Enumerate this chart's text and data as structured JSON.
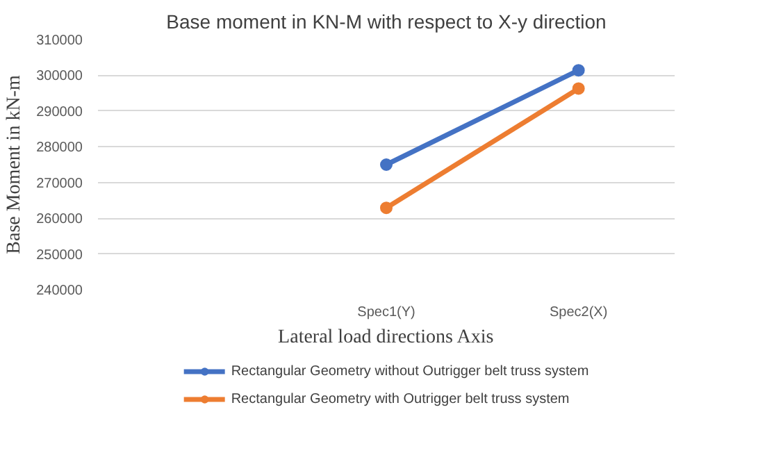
{
  "chart_data": {
    "type": "line",
    "title": "Base moment in KN-M with respect to X-y direction",
    "xlabel": "Lateral load directions Axis",
    "ylabel": "Base Moment in kN-m",
    "categories": [
      null,
      "Spec1(Y)",
      "Spec2(X)"
    ],
    "series": [
      {
        "name": "Rectangular Geometry without Outrigger belt truss system",
        "color": "#4472c4",
        "values": [
          null,
          275000,
          301400
        ]
      },
      {
        "name": "Rectangular Geometry with Outrigger belt truss system",
        "color": "#ed7d31",
        "values": [
          null,
          262900,
          296300
        ]
      }
    ],
    "ylim": [
      240000,
      310000
    ],
    "yticks": [
      240000,
      250000,
      260000,
      270000,
      280000,
      290000,
      300000,
      310000
    ],
    "grid": "y",
    "legend": "bottom",
    "marker": "circle",
    "line_style": "solid"
  }
}
